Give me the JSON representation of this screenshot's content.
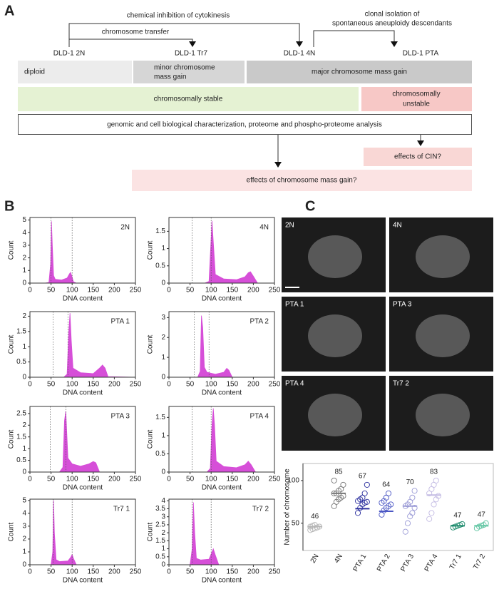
{
  "diagram": {
    "label": "A",
    "arrow_cytokinesis": "chemical inhibition of cytokinesis",
    "arrow_transfer": "chromosome transfer",
    "arrow_clonal": [
      "clonal isolation  of",
      "spontaneous aneuploidy descendants"
    ],
    "stages": [
      "DLD-1 2N",
      "DLD-1 Tr7",
      "DLD-1 4N",
      "DLD-1 PTA"
    ],
    "diploid": "diploid",
    "minor_gain": [
      "minor chromosome",
      "mass gain"
    ],
    "major_gain": "major chromosome mass gain",
    "stable": "chromosomally stable",
    "unstable": [
      "chromosomally",
      "unstable"
    ],
    "analysis": "genomic and cell biological characterization, proteome and phospho-proteome analysis",
    "cin": "effects of CIN?",
    "mass_gain": "effects of chromosome mass gain?"
  },
  "panel_b_label": "B",
  "panel_c_label": "C",
  "images": [
    "2N",
    "4N",
    "PTA 1",
    "PTA 3",
    "PTA 4",
    "Tr7 2"
  ],
  "chart_data": [
    {
      "type": "area",
      "title": "2N",
      "x_label": "DNA content",
      "y_label": "Count",
      "color": "#d64fd8",
      "xlim": [
        0,
        250
      ],
      "xticks": [
        0,
        50,
        100,
        150,
        200,
        250
      ],
      "ylim": [
        0,
        5.2
      ],
      "yticks": [
        0,
        1,
        2,
        3,
        4,
        5
      ],
      "markers": [
        50,
        100
      ],
      "x": [
        35,
        45,
        49,
        51,
        53,
        56,
        60,
        75,
        88,
        93,
        96,
        99,
        103,
        110,
        250
      ],
      "values": [
        0,
        0.05,
        1.5,
        4.9,
        3,
        0.6,
        0.3,
        0.25,
        0.4,
        0.7,
        0.85,
        0.6,
        0.1,
        0,
        0
      ]
    },
    {
      "type": "area",
      "title": "4N",
      "x_label": "DNA content",
      "y_label": "Count",
      "color": "#d64fd8",
      "xlim": [
        0,
        250
      ],
      "xticks": [
        0,
        50,
        100,
        150,
        200,
        250
      ],
      "ylim": [
        0,
        1.9
      ],
      "yticks": [
        0,
        0.5,
        1,
        1.5
      ],
      "markers": [
        55,
        100
      ],
      "x": [
        0,
        85,
        95,
        100,
        102,
        105,
        110,
        130,
        160,
        180,
        188,
        193,
        200,
        210,
        250
      ],
      "values": [
        0,
        0,
        0.05,
        1.3,
        1.8,
        1.2,
        0.25,
        0.12,
        0.1,
        0.18,
        0.3,
        0.33,
        0.2,
        0,
        0
      ]
    },
    {
      "type": "area",
      "title": "PTA 1",
      "x_label": "DNA content",
      "y_label": "Count",
      "color": "#d64fd8",
      "xlim": [
        0,
        250
      ],
      "xticks": [
        0,
        50,
        100,
        150,
        200,
        250
      ],
      "ylim": [
        0,
        2.15
      ],
      "yticks": [
        0,
        0.5,
        1,
        1.5,
        2
      ],
      "markers": [
        55,
        90
      ],
      "x": [
        0,
        80,
        88,
        92,
        95,
        98,
        102,
        120,
        150,
        165,
        172,
        178,
        185,
        250
      ],
      "values": [
        0,
        0,
        0.1,
        1.5,
        2.1,
        1.2,
        0.3,
        0.15,
        0.12,
        0.3,
        0.4,
        0.3,
        0.02,
        0
      ]
    },
    {
      "type": "area",
      "title": "PTA 2",
      "x_label": "DNA content",
      "y_label": "Count",
      "color": "#d64fd8",
      "xlim": [
        0,
        250
      ],
      "xticks": [
        0,
        50,
        100,
        150,
        200,
        250
      ],
      "ylim": [
        0,
        3.3
      ],
      "yticks": [
        0,
        1,
        2,
        3
      ],
      "markers": [
        60,
        95
      ],
      "x": [
        0,
        68,
        74,
        77,
        80,
        84,
        90,
        110,
        130,
        137,
        142,
        150,
        250
      ],
      "values": [
        0,
        0,
        0.3,
        3.1,
        2.5,
        0.5,
        0.25,
        0.15,
        0.25,
        0.45,
        0.35,
        0,
        0
      ]
    },
    {
      "type": "area",
      "title": "PTA 3",
      "x_label": "DNA content",
      "y_label": "Count",
      "color": "#d64fd8",
      "xlim": [
        0,
        250
      ],
      "xticks": [
        0,
        50,
        100,
        150,
        200,
        250
      ],
      "ylim": [
        0,
        2.8
      ],
      "yticks": [
        0,
        0.5,
        1,
        1.5,
        2,
        2.5
      ],
      "markers": [
        48,
        85
      ],
      "x": [
        0,
        70,
        78,
        82,
        85,
        90,
        100,
        120,
        140,
        150,
        156,
        165,
        250
      ],
      "values": [
        0,
        0,
        0.2,
        2.2,
        2.6,
        0.6,
        0.35,
        0.25,
        0.35,
        0.45,
        0.4,
        0,
        0
      ]
    },
    {
      "type": "area",
      "title": "PTA 4",
      "x_label": "DNA content",
      "y_label": "Count",
      "color": "#d64fd8",
      "xlim": [
        0,
        250
      ],
      "xticks": [
        0,
        50,
        100,
        150,
        200,
        250
      ],
      "ylim": [
        0,
        1.8
      ],
      "yticks": [
        0,
        0.5,
        1,
        1.5
      ],
      "markers": [
        55,
        100
      ],
      "x": [
        0,
        90,
        98,
        102,
        105,
        108,
        112,
        130,
        160,
        180,
        188,
        195,
        205,
        250
      ],
      "values": [
        0,
        0,
        0.1,
        1.3,
        1.75,
        1.3,
        0.3,
        0.15,
        0.12,
        0.2,
        0.3,
        0.2,
        0,
        0
      ]
    },
    {
      "type": "area",
      "title": "Tr7 1",
      "x_label": "DNA content",
      "y_label": "Count",
      "color": "#d64fd8",
      "xlim": [
        0,
        250
      ],
      "xticks": [
        0,
        50,
        100,
        150,
        200,
        250
      ],
      "ylim": [
        0,
        5.1
      ],
      "yticks": [
        0,
        1,
        2,
        3,
        4,
        5
      ],
      "markers": [
        55,
        100
      ],
      "x": [
        0,
        50,
        54,
        56,
        58,
        62,
        70,
        90,
        97,
        100,
        103,
        110,
        250
      ],
      "values": [
        0,
        0,
        1,
        5,
        2.5,
        0.4,
        0.25,
        0.3,
        0.6,
        0.8,
        0.5,
        0,
        0
      ]
    },
    {
      "type": "area",
      "title": "Tr7 2",
      "x_label": "DNA content",
      "y_label": "Count",
      "color": "#d64fd8",
      "xlim": [
        0,
        250
      ],
      "xticks": [
        0,
        50,
        100,
        150,
        200,
        250
      ],
      "ylim": [
        0,
        4.1
      ],
      "yticks": [
        0,
        0.5,
        1,
        1.5,
        2,
        2.5,
        3,
        3.5,
        4
      ],
      "markers": [
        55,
        100
      ],
      "x": [
        0,
        50,
        55,
        58,
        61,
        65,
        75,
        95,
        102,
        105,
        110,
        118,
        250
      ],
      "values": [
        0,
        0,
        1,
        3.9,
        2,
        0.4,
        0.3,
        0.35,
        0.8,
        1,
        0.6,
        0,
        0
      ]
    },
    {
      "type": "dot",
      "y_label": "Number of chromosome",
      "ylim": [
        18,
        120
      ],
      "yticks": [
        50,
        100
      ],
      "categories": [
        "2N",
        "4N",
        "PTA 1",
        "PTA 2",
        "PTA 3",
        "PTA 4",
        "Tr7 1",
        "Tr7 2"
      ],
      "values": [
        46,
        85,
        67,
        64,
        70,
        83,
        47,
        47
      ],
      "colors": [
        "#b5b5b5",
        "#777777",
        "#2b2f9e",
        "#4a56c4",
        "#9a9ad6",
        "#c4bce4",
        "#1b8a6b",
        "#5cc4a0"
      ],
      "points": [
        [
          42,
          43,
          44,
          45,
          46,
          46,
          47,
          48
        ],
        [
          70,
          75,
          78,
          80,
          82,
          85,
          85,
          88,
          90,
          95,
          100
        ],
        [
          62,
          68,
          72,
          74,
          75,
          76,
          78,
          80,
          85,
          95
        ],
        [
          60,
          65,
          68,
          70,
          72,
          74,
          76,
          80,
          85
        ],
        [
          40,
          50,
          58,
          62,
          68,
          70,
          72,
          75,
          80,
          88
        ],
        [
          55,
          62,
          72,
          78,
          82,
          85,
          90,
          95,
          100
        ],
        [
          45,
          46,
          47,
          48,
          49
        ],
        [
          44,
          46,
          47,
          48,
          50
        ]
      ]
    }
  ]
}
